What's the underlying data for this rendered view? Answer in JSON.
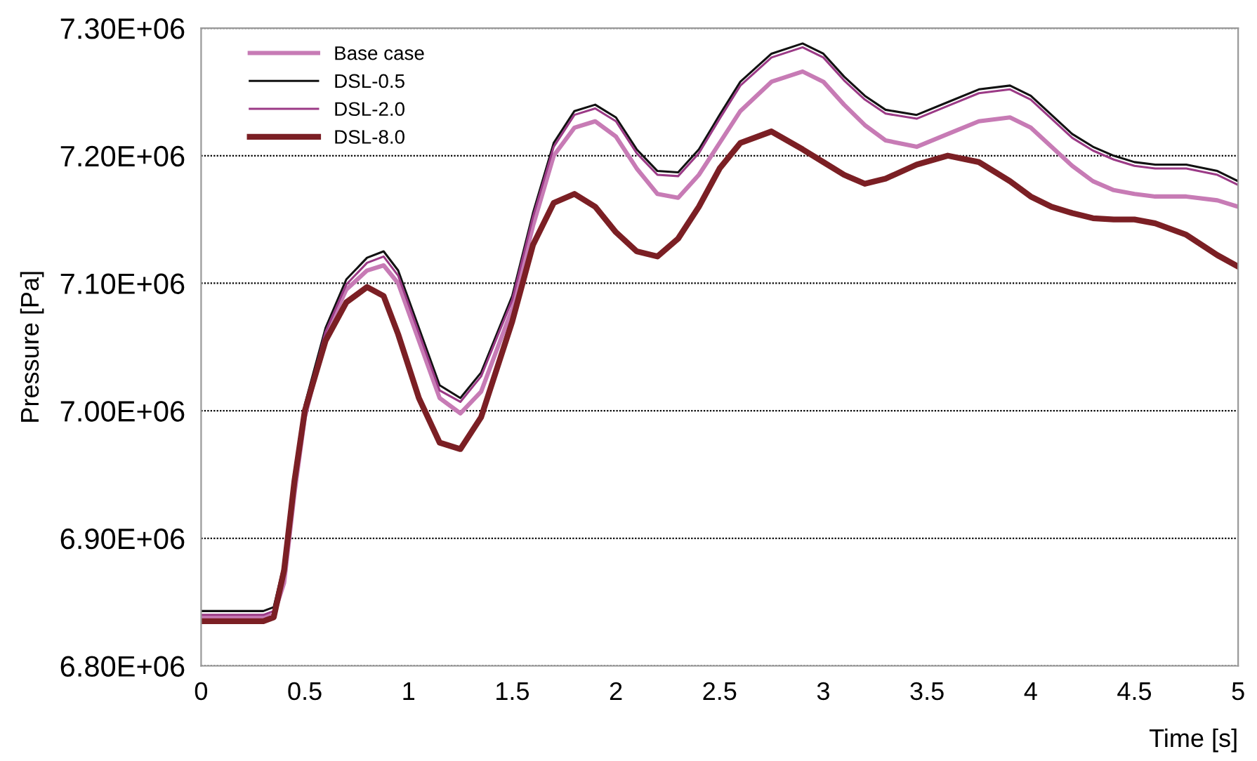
{
  "chart_data": {
    "type": "line",
    "xlabel": "Time [s]",
    "ylabel": "Pressure [Pa]",
    "x": [
      0,
      0.3,
      0.35,
      0.4,
      0.45,
      0.5,
      0.6,
      0.7,
      0.8,
      0.88,
      0.95,
      1.05,
      1.15,
      1.25,
      1.35,
      1.5,
      1.6,
      1.7,
      1.8,
      1.9,
      2.0,
      2.1,
      2.2,
      2.3,
      2.4,
      2.5,
      2.6,
      2.75,
      2.9,
      3.0,
      3.1,
      3.2,
      3.3,
      3.45,
      3.6,
      3.75,
      3.9,
      4.0,
      4.1,
      4.2,
      4.3,
      4.4,
      4.5,
      4.6,
      4.75,
      4.9,
      5.0
    ],
    "series": [
      {
        "name": "Base case",
        "color": "#c77bb5",
        "values": [
          6838000,
          6838000,
          6840000,
          6865000,
          6935000,
          6995000,
          7060000,
          7095000,
          7110000,
          7114000,
          7100000,
          7055000,
          7010000,
          6998000,
          7015000,
          7080000,
          7145000,
          7200000,
          7222000,
          7227000,
          7215000,
          7190000,
          7170000,
          7167000,
          7185000,
          7210000,
          7235000,
          7258000,
          7266000,
          7258000,
          7240000,
          7224000,
          7212000,
          7207000,
          7217000,
          7227000,
          7230000,
          7222000,
          7207000,
          7192000,
          7180000,
          7173000,
          7170000,
          7168000,
          7168000,
          7165000,
          7160000
        ]
      },
      {
        "name": "DSL-0.5",
        "color": "#111111",
        "values": [
          6843000,
          6843000,
          6846000,
          6880000,
          6950000,
          7005000,
          7065000,
          7103000,
          7120000,
          7125000,
          7110000,
          7065000,
          7020000,
          7010000,
          7030000,
          7090000,
          7155000,
          7210000,
          7235000,
          7240000,
          7230000,
          7205000,
          7188000,
          7187000,
          7205000,
          7232000,
          7258000,
          7280000,
          7288000,
          7280000,
          7262000,
          7247000,
          7236000,
          7232000,
          7242000,
          7252000,
          7255000,
          7247000,
          7232000,
          7217000,
          7207000,
          7200000,
          7195000,
          7193000,
          7193000,
          7188000,
          7180000
        ]
      },
      {
        "name": "DSL-2.0",
        "color": "#9b3a86",
        "values": [
          6840000,
          6840000,
          6843000,
          6876000,
          6946000,
          7002000,
          7062000,
          7099000,
          7116000,
          7121000,
          7106000,
          7061000,
          7016000,
          7007000,
          7027000,
          7087000,
          7152000,
          7207000,
          7232000,
          7237000,
          7227000,
          7202000,
          7185000,
          7184000,
          7202000,
          7229000,
          7255000,
          7277000,
          7285000,
          7277000,
          7259000,
          7244000,
          7233000,
          7229000,
          7239000,
          7249000,
          7252000,
          7244000,
          7229000,
          7214000,
          7204000,
          7197000,
          7192000,
          7190000,
          7190000,
          7185000,
          7177000
        ]
      },
      {
        "name": "DSL-8.0",
        "color": "#7b1f24",
        "values": [
          6835000,
          6835000,
          6838000,
          6875000,
          6945000,
          7000000,
          7055000,
          7085000,
          7097000,
          7090000,
          7060000,
          7010000,
          6975000,
          6970000,
          6995000,
          7070000,
          7130000,
          7163000,
          7170000,
          7160000,
          7140000,
          7125000,
          7121000,
          7135000,
          7160000,
          7190000,
          7210000,
          7219000,
          7205000,
          7195000,
          7185000,
          7178000,
          7182000,
          7193000,
          7200000,
          7195000,
          7180000,
          7168000,
          7160000,
          7155000,
          7151000,
          7150000,
          7150000,
          7147000,
          7138000,
          7122000,
          7113000
        ]
      }
    ],
    "xlim": [
      0,
      5
    ],
    "xticks": [
      0,
      0.5,
      1,
      1.5,
      2,
      2.5,
      3,
      3.5,
      4,
      4.5,
      5
    ],
    "ylim": [
      6800000,
      7300000
    ],
    "yticks": [
      {
        "value": 6800000,
        "label": "6.80E+06"
      },
      {
        "value": 6900000,
        "label": "6.90E+06"
      },
      {
        "value": 7000000,
        "label": "7.00E+06"
      },
      {
        "value": 7100000,
        "label": "7.10E+06"
      },
      {
        "value": 7200000,
        "label": "7.20E+06"
      },
      {
        "value": 7300000,
        "label": "7.30E+06"
      }
    ],
    "grid": "y",
    "legend": "top left",
    "line_style": "solid",
    "marker": "none"
  }
}
